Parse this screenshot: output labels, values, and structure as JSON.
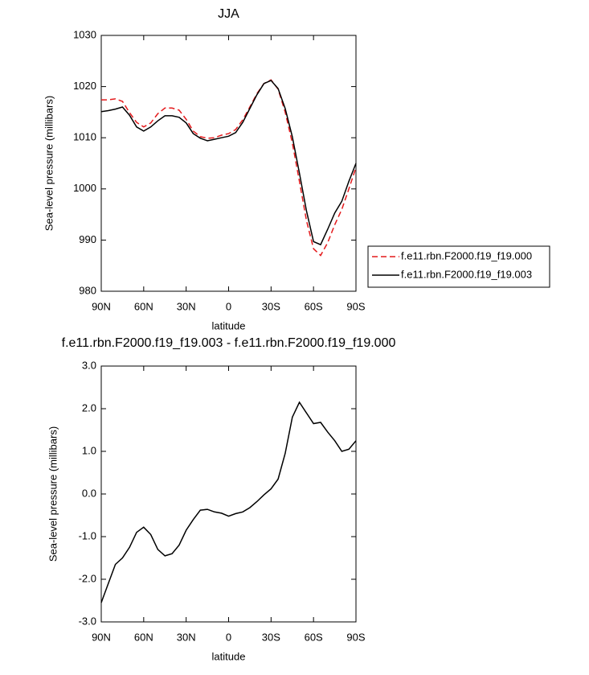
{
  "chart_data": [
    {
      "type": "line",
      "title": "JJA",
      "xlabel": "latitude",
      "ylabel": "Sea-level pressure (millibars)",
      "x": [
        90,
        85,
        80,
        75,
        70,
        65,
        60,
        55,
        50,
        45,
        40,
        35,
        30,
        25,
        20,
        15,
        10,
        5,
        0,
        -5,
        -10,
        -15,
        -20,
        -25,
        -30,
        -35,
        -40,
        -45,
        -50,
        -55,
        -60,
        -65,
        -70,
        -75,
        -80,
        -85,
        -90
      ],
      "series": [
        {
          "name": "f.e11.rbn.F2000.f19_f19.000",
          "color": "#e41a1c",
          "dash": true,
          "values": [
            1017.4,
            1017.4,
            1017.6,
            1017.1,
            1014.9,
            1013,
            1012.1,
            1012.9,
            1014.7,
            1015.8,
            1015.8,
            1015.4,
            1013.6,
            1011.3,
            1010.2,
            1009.9,
            1010,
            1010.5,
            1010.8,
            1011.6,
            1013.5,
            1016,
            1018.6,
            1020.6,
            1021.3,
            1019.5,
            1015,
            1009,
            1001.5,
            993.8,
            988.3,
            987,
            989.5,
            993,
            996,
            1000,
            1004.2
          ]
        },
        {
          "name": "f.e11.rbn.F2000.f19_f19.003",
          "color": "#000000",
          "dash": false,
          "values": [
            1015.1,
            1015.3,
            1015.6,
            1016,
            1014.4,
            1012.1,
            1011.3,
            1012.1,
            1013.3,
            1014.3,
            1014.3,
            1014,
            1012.9,
            1010.8,
            1009.9,
            1009.4,
            1009.7,
            1010,
            1010.3,
            1011,
            1013,
            1015.7,
            1018.4,
            1020.6,
            1021.2,
            1019.6,
            1015.7,
            1010.2,
            1003.1,
            995.7,
            989.7,
            989.1,
            992.1,
            995.3,
            997.6,
            1001.5,
            1005
          ]
        }
      ],
      "xlim": [
        90,
        -90
      ],
      "xticks": [
        {
          "value": 90,
          "label": "90N"
        },
        {
          "value": 60,
          "label": "60N"
        },
        {
          "value": 30,
          "label": "30N"
        },
        0,
        {
          "value": -30,
          "label": "30S"
        },
        {
          "value": -60,
          "label": "60S"
        },
        {
          "value": -90,
          "label": "90S"
        }
      ],
      "ylim": [
        980,
        1030
      ],
      "yticks": [
        980,
        990,
        1000,
        1010,
        1020,
        1030
      ],
      "legend": "right"
    },
    {
      "type": "line",
      "title": "f.e11.rbn.F2000.f19_f19.003 - f.e11.rbn.F2000.f19_f19.000",
      "xlabel": "latitude",
      "ylabel": "Sea-level pressure (millibars)",
      "x": [
        90,
        85,
        80,
        75,
        70,
        65,
        60,
        55,
        50,
        45,
        40,
        35,
        30,
        25,
        20,
        15,
        10,
        5,
        0,
        -5,
        -10,
        -15,
        -20,
        -25,
        -30,
        -35,
        -40,
        -45,
        -50,
        -55,
        -60,
        -65,
        -70,
        -75,
        -80,
        -85,
        -90
      ],
      "values": [
        -2.55,
        -2.1,
        -1.65,
        -1.5,
        -1.25,
        -0.9,
        -0.78,
        -0.95,
        -1.3,
        -1.45,
        -1.4,
        -1.2,
        -0.85,
        -0.6,
        -0.38,
        -0.36,
        -0.42,
        -0.45,
        -0.52,
        -0.46,
        -0.42,
        -0.32,
        -0.18,
        -0.02,
        0.12,
        0.35,
        0.95,
        1.8,
        2.15,
        1.9,
        1.65,
        1.68,
        1.45,
        1.25,
        1.0,
        1.05,
        1.25
      ],
      "color": "#000000",
      "xlim": [
        90,
        -90
      ],
      "xticks": [
        {
          "value": 90,
          "label": "90N"
        },
        {
          "value": 60,
          "label": "60N"
        },
        {
          "value": 30,
          "label": "30N"
        },
        0,
        {
          "value": -30,
          "label": "30S"
        },
        {
          "value": -60,
          "label": "60S"
        },
        {
          "value": -90,
          "label": "90S"
        }
      ],
      "ylim": [
        -3,
        3
      ],
      "yticks": [
        {
          "value": -3,
          "label": "-3.0"
        },
        {
          "value": -2,
          "label": "-2.0"
        },
        {
          "value": -1,
          "label": "-1.0"
        },
        {
          "value": 0,
          "label": "0.0"
        },
        {
          "value": 1,
          "label": "1.0"
        },
        {
          "value": 2,
          "label": "2.0"
        },
        {
          "value": 3,
          "label": "3.0"
        }
      ]
    }
  ]
}
